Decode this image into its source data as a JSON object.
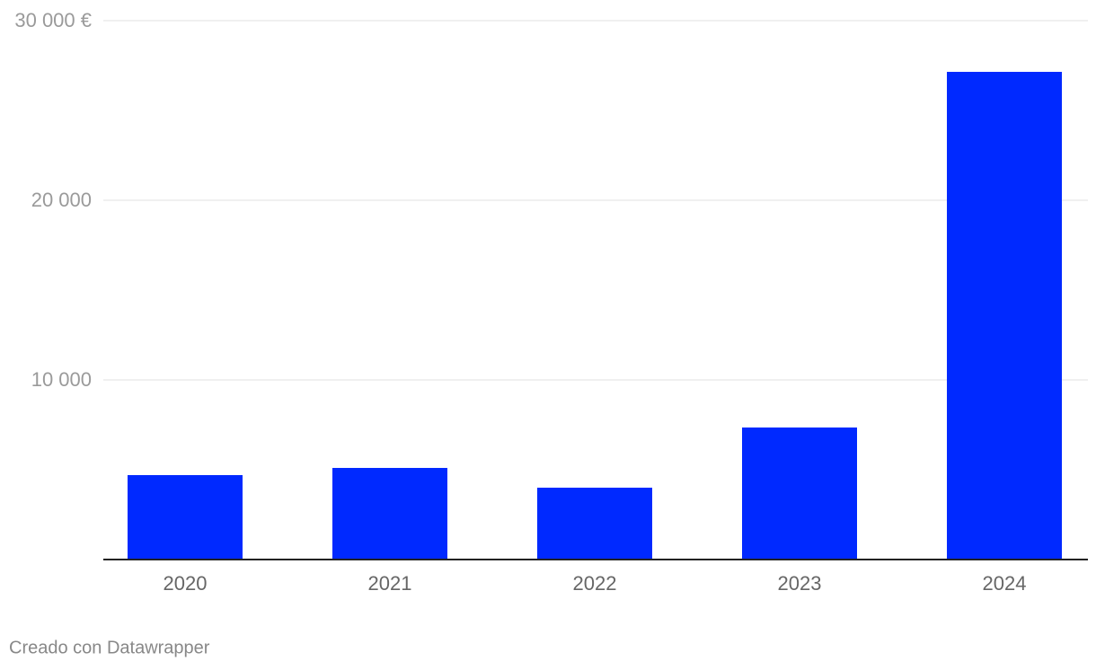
{
  "chart_data": {
    "type": "bar",
    "categories": [
      "2020",
      "2021",
      "2022",
      "2023",
      "2024"
    ],
    "values": [
      4700,
      5100,
      4000,
      7350,
      27150
    ],
    "color": "#0029ff",
    "ylim": [
      0,
      30000
    ],
    "yticks": [
      {
        "value": 10000,
        "label": "10 000"
      },
      {
        "value": 20000,
        "label": "20 000"
      },
      {
        "value": 30000,
        "label": "30 000 €"
      }
    ],
    "grid": true
  },
  "credit": "Creado con Datawrapper"
}
